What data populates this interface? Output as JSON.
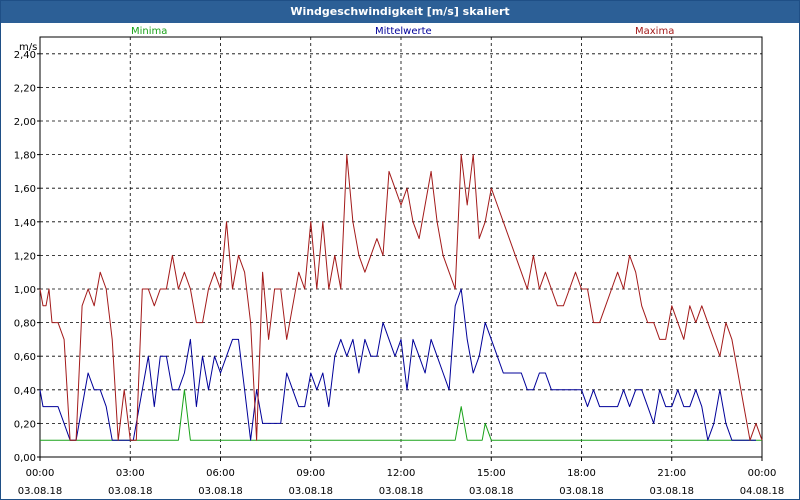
{
  "chart_data": {
    "type": "line",
    "title": "Windgeschwindigkeit [m/s] skaliert",
    "ylabel": "m/s",
    "ylim": [
      0,
      2.5
    ],
    "y_ticks": [
      "0,00",
      "0,20",
      "0,40",
      "0,60",
      "0,80",
      "1,00",
      "1,20",
      "1,40",
      "1,60",
      "1,80",
      "2,00",
      "2,20",
      "2,40"
    ],
    "x_ticks": [
      {
        "time": "00:00",
        "date": "03.08.18"
      },
      {
        "time": "03:00",
        "date": "03.08.18"
      },
      {
        "time": "06:00",
        "date": "03.08.18"
      },
      {
        "time": "09:00",
        "date": "03.08.18"
      },
      {
        "time": "12:00",
        "date": "03.08.18"
      },
      {
        "time": "15:00",
        "date": "03.08.18"
      },
      {
        "time": "18:00",
        "date": "03.08.18"
      },
      {
        "time": "21:00",
        "date": "03.08.18"
      },
      {
        "time": "00:00",
        "date": "04.08.18"
      }
    ],
    "grid": true,
    "legend_position": "top",
    "series": [
      {
        "name": "Minima",
        "color": "#1aa31a",
        "points": [
          [
            0,
            0.1
          ],
          [
            4.6,
            0.1
          ],
          [
            4.8,
            0.4
          ],
          [
            5.0,
            0.1
          ],
          [
            13.8,
            0.1
          ],
          [
            14.0,
            0.3
          ],
          [
            14.2,
            0.1
          ],
          [
            14.7,
            0.1
          ],
          [
            14.8,
            0.2
          ],
          [
            15.0,
            0.1
          ],
          [
            24,
            0.1
          ]
        ]
      },
      {
        "name": "Mittelwerte",
        "color": "#000099",
        "points": [
          [
            0,
            0.4
          ],
          [
            0.1,
            0.3
          ],
          [
            0.3,
            0.3
          ],
          [
            0.6,
            0.3
          ],
          [
            0.8,
            0.2
          ],
          [
            1.0,
            0.1
          ],
          [
            1.2,
            0.1
          ],
          [
            1.4,
            0.3
          ],
          [
            1.6,
            0.5
          ],
          [
            1.8,
            0.4
          ],
          [
            2.0,
            0.4
          ],
          [
            2.2,
            0.3
          ],
          [
            2.4,
            0.1
          ],
          [
            2.6,
            0.1
          ],
          [
            2.8,
            0.1
          ],
          [
            3.0,
            0.1
          ],
          [
            3.1,
            0.1
          ],
          [
            3.3,
            0.3
          ],
          [
            3.5,
            0.5
          ],
          [
            3.6,
            0.6
          ],
          [
            3.8,
            0.3
          ],
          [
            4.0,
            0.6
          ],
          [
            4.2,
            0.6
          ],
          [
            4.4,
            0.4
          ],
          [
            4.6,
            0.4
          ],
          [
            4.8,
            0.5
          ],
          [
            5.0,
            0.7
          ],
          [
            5.2,
            0.3
          ],
          [
            5.4,
            0.6
          ],
          [
            5.6,
            0.4
          ],
          [
            5.8,
            0.6
          ],
          [
            6.0,
            0.5
          ],
          [
            6.2,
            0.6
          ],
          [
            6.4,
            0.7
          ],
          [
            6.6,
            0.7
          ],
          [
            6.8,
            0.4
          ],
          [
            7.0,
            0.1
          ],
          [
            7.2,
            0.4
          ],
          [
            7.4,
            0.2
          ],
          [
            7.6,
            0.2
          ],
          [
            7.8,
            0.2
          ],
          [
            8.0,
            0.2
          ],
          [
            8.2,
            0.5
          ],
          [
            8.4,
            0.4
          ],
          [
            8.6,
            0.3
          ],
          [
            8.8,
            0.3
          ],
          [
            9.0,
            0.5
          ],
          [
            9.2,
            0.4
          ],
          [
            9.4,
            0.5
          ],
          [
            9.6,
            0.3
          ],
          [
            9.8,
            0.6
          ],
          [
            10.0,
            0.7
          ],
          [
            10.2,
            0.6
          ],
          [
            10.4,
            0.7
          ],
          [
            10.6,
            0.5
          ],
          [
            10.8,
            0.7
          ],
          [
            11.0,
            0.6
          ],
          [
            11.2,
            0.6
          ],
          [
            11.4,
            0.8
          ],
          [
            11.6,
            0.7
          ],
          [
            11.8,
            0.6
          ],
          [
            12.0,
            0.7
          ],
          [
            12.2,
            0.4
          ],
          [
            12.4,
            0.7
          ],
          [
            12.6,
            0.6
          ],
          [
            12.8,
            0.5
          ],
          [
            13.0,
            0.7
          ],
          [
            13.2,
            0.6
          ],
          [
            13.4,
            0.5
          ],
          [
            13.6,
            0.4
          ],
          [
            13.8,
            0.9
          ],
          [
            14.0,
            1.0
          ],
          [
            14.2,
            0.7
          ],
          [
            14.4,
            0.5
          ],
          [
            14.6,
            0.6
          ],
          [
            14.8,
            0.8
          ],
          [
            15.0,
            0.7
          ],
          [
            15.2,
            0.6
          ],
          [
            15.4,
            0.5
          ],
          [
            15.6,
            0.5
          ],
          [
            15.8,
            0.5
          ],
          [
            16.0,
            0.5
          ],
          [
            16.2,
            0.4
          ],
          [
            16.4,
            0.4
          ],
          [
            16.6,
            0.5
          ],
          [
            16.8,
            0.5
          ],
          [
            17.0,
            0.4
          ],
          [
            17.2,
            0.4
          ],
          [
            17.4,
            0.4
          ],
          [
            17.6,
            0.4
          ],
          [
            17.8,
            0.4
          ],
          [
            18.0,
            0.4
          ],
          [
            18.2,
            0.3
          ],
          [
            18.4,
            0.4
          ],
          [
            18.6,
            0.3
          ],
          [
            18.8,
            0.3
          ],
          [
            19.0,
            0.3
          ],
          [
            19.2,
            0.3
          ],
          [
            19.4,
            0.4
          ],
          [
            19.6,
            0.3
          ],
          [
            19.8,
            0.4
          ],
          [
            20.0,
            0.4
          ],
          [
            20.2,
            0.3
          ],
          [
            20.4,
            0.2
          ],
          [
            20.6,
            0.4
          ],
          [
            20.8,
            0.3
          ],
          [
            21.0,
            0.3
          ],
          [
            21.2,
            0.4
          ],
          [
            21.4,
            0.3
          ],
          [
            21.6,
            0.3
          ],
          [
            21.8,
            0.4
          ],
          [
            22.0,
            0.3
          ],
          [
            22.2,
            0.1
          ],
          [
            22.4,
            0.2
          ],
          [
            22.6,
            0.4
          ],
          [
            22.8,
            0.2
          ],
          [
            23.0,
            0.1
          ],
          [
            23.2,
            0.1
          ],
          [
            23.4,
            0.1
          ],
          [
            23.6,
            0.1
          ],
          [
            23.8,
            0.1
          ]
        ]
      },
      {
        "name": "Maxima",
        "color": "#a31a1a",
        "points": [
          [
            0,
            1.0
          ],
          [
            0.1,
            0.9
          ],
          [
            0.2,
            0.9
          ],
          [
            0.3,
            1.0
          ],
          [
            0.4,
            0.8
          ],
          [
            0.6,
            0.8
          ],
          [
            0.8,
            0.7
          ],
          [
            1.0,
            0.1
          ],
          [
            1.2,
            0.1
          ],
          [
            1.4,
            0.9
          ],
          [
            1.6,
            1.0
          ],
          [
            1.8,
            0.9
          ],
          [
            2.0,
            1.1
          ],
          [
            2.2,
            1.0
          ],
          [
            2.4,
            0.7
          ],
          [
            2.6,
            0.1
          ],
          [
            2.8,
            0.4
          ],
          [
            3.0,
            0.1
          ],
          [
            3.2,
            0.1
          ],
          [
            3.4,
            1.0
          ],
          [
            3.6,
            1.0
          ],
          [
            3.8,
            0.9
          ],
          [
            4.0,
            1.0
          ],
          [
            4.2,
            1.0
          ],
          [
            4.4,
            1.2
          ],
          [
            4.6,
            1.0
          ],
          [
            4.8,
            1.1
          ],
          [
            5.0,
            1.0
          ],
          [
            5.2,
            0.8
          ],
          [
            5.4,
            0.8
          ],
          [
            5.6,
            1.0
          ],
          [
            5.8,
            1.1
          ],
          [
            6.0,
            1.0
          ],
          [
            6.2,
            1.4
          ],
          [
            6.4,
            1.0
          ],
          [
            6.6,
            1.2
          ],
          [
            6.8,
            1.1
          ],
          [
            7.0,
            0.8
          ],
          [
            7.2,
            0.1
          ],
          [
            7.4,
            1.1
          ],
          [
            7.6,
            0.7
          ],
          [
            7.8,
            1.0
          ],
          [
            8.0,
            1.0
          ],
          [
            8.2,
            0.7
          ],
          [
            8.4,
            0.9
          ],
          [
            8.6,
            1.1
          ],
          [
            8.8,
            1.0
          ],
          [
            9.0,
            1.4
          ],
          [
            9.2,
            1.0
          ],
          [
            9.4,
            1.4
          ],
          [
            9.6,
            1.0
          ],
          [
            9.8,
            1.2
          ],
          [
            10.0,
            1.0
          ],
          [
            10.2,
            1.8
          ],
          [
            10.4,
            1.4
          ],
          [
            10.6,
            1.2
          ],
          [
            10.8,
            1.1
          ],
          [
            11.0,
            1.2
          ],
          [
            11.2,
            1.3
          ],
          [
            11.4,
            1.2
          ],
          [
            11.6,
            1.7
          ],
          [
            11.8,
            1.6
          ],
          [
            12.0,
            1.5
          ],
          [
            12.2,
            1.6
          ],
          [
            12.4,
            1.4
          ],
          [
            12.6,
            1.3
          ],
          [
            12.8,
            1.5
          ],
          [
            13.0,
            1.7
          ],
          [
            13.2,
            1.4
          ],
          [
            13.4,
            1.2
          ],
          [
            13.6,
            1.1
          ],
          [
            13.8,
            1.0
          ],
          [
            14.0,
            1.8
          ],
          [
            14.2,
            1.5
          ],
          [
            14.4,
            1.8
          ],
          [
            14.6,
            1.3
          ],
          [
            14.8,
            1.4
          ],
          [
            15.0,
            1.6
          ],
          [
            15.2,
            1.5
          ],
          [
            15.4,
            1.4
          ],
          [
            15.6,
            1.3
          ],
          [
            15.8,
            1.2
          ],
          [
            16.0,
            1.1
          ],
          [
            16.2,
            1.0
          ],
          [
            16.4,
            1.2
          ],
          [
            16.6,
            1.0
          ],
          [
            16.8,
            1.1
          ],
          [
            17.0,
            1.0
          ],
          [
            17.2,
            0.9
          ],
          [
            17.4,
            0.9
          ],
          [
            17.6,
            1.0
          ],
          [
            17.8,
            1.1
          ],
          [
            18.0,
            1.0
          ],
          [
            18.2,
            1.0
          ],
          [
            18.4,
            0.8
          ],
          [
            18.6,
            0.8
          ],
          [
            18.8,
            0.9
          ],
          [
            19.0,
            1.0
          ],
          [
            19.2,
            1.1
          ],
          [
            19.4,
            1.0
          ],
          [
            19.6,
            1.2
          ],
          [
            19.8,
            1.1
          ],
          [
            20.0,
            0.9
          ],
          [
            20.2,
            0.8
          ],
          [
            20.4,
            0.8
          ],
          [
            20.6,
            0.7
          ],
          [
            20.8,
            0.7
          ],
          [
            21.0,
            0.9
          ],
          [
            21.2,
            0.8
          ],
          [
            21.4,
            0.7
          ],
          [
            21.6,
            0.9
          ],
          [
            21.8,
            0.8
          ],
          [
            22.0,
            0.9
          ],
          [
            22.2,
            0.8
          ],
          [
            22.4,
            0.7
          ],
          [
            22.6,
            0.6
          ],
          [
            22.8,
            0.8
          ],
          [
            23.0,
            0.7
          ],
          [
            23.2,
            0.5
          ],
          [
            23.4,
            0.3
          ],
          [
            23.6,
            0.1
          ],
          [
            23.8,
            0.2
          ],
          [
            24.0,
            0.1
          ]
        ]
      }
    ]
  }
}
